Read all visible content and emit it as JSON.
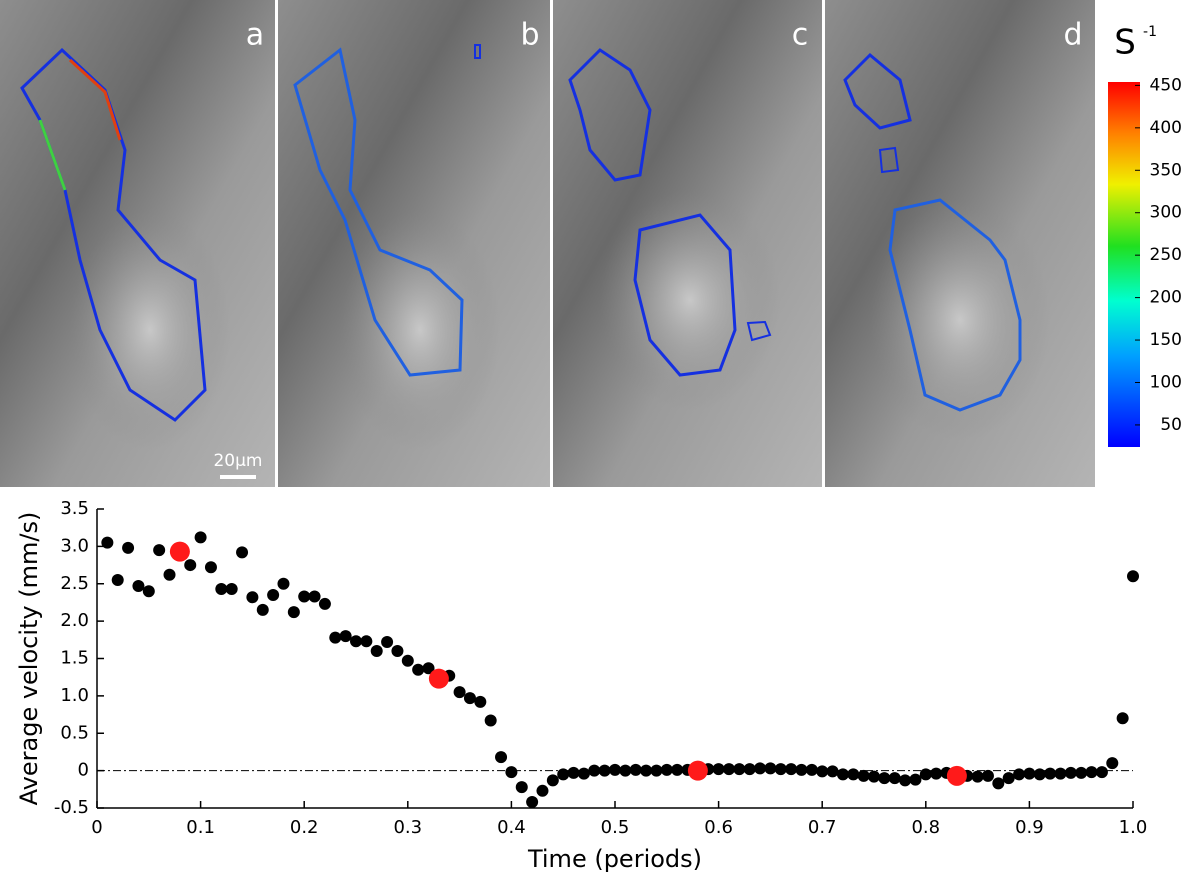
{
  "panels": {
    "labels": [
      "a",
      "b",
      "c",
      "d"
    ],
    "scale_bar": "20μm"
  },
  "chart_data": [
    {
      "type": "colorbar",
      "title": "S",
      "title_superscript": "-1",
      "colormap": "jet",
      "ylim": [
        24,
        454
      ],
      "yticks": [
        50,
        100,
        150,
        200,
        250,
        300,
        350,
        400,
        450
      ]
    },
    {
      "type": "scatter",
      "x_label": "Time (periods)",
      "y_label": "Average velocity (mm/s)",
      "xlim": [
        0,
        1
      ],
      "xticks": [
        0,
        0.1,
        0.2,
        0.3,
        0.4,
        0.5,
        0.6,
        0.7,
        0.8,
        0.9,
        {
          "value": 1,
          "label": "1.0"
        }
      ],
      "ylim": [
        -0.5,
        3.5
      ],
      "yticks": [
        -0.5,
        0,
        0.5,
        {
          "value": 1,
          "label": "1.0"
        },
        1.5,
        {
          "value": 2,
          "label": "2.0"
        },
        2.5,
        {
          "value": 3,
          "label": "3.0"
        },
        3.5
      ],
      "zero_line": true,
      "grid": false,
      "series": [
        {
          "color": "#000000",
          "x": [
            0.01,
            0.02,
            0.03,
            0.04,
            0.05,
            0.06,
            0.07,
            0.09,
            0.1,
            0.11,
            0.12,
            0.13,
            0.14,
            0.15,
            0.16,
            0.17,
            0.18,
            0.19,
            0.2,
            0.21,
            0.22,
            0.23,
            0.24,
            0.25,
            0.26,
            0.27,
            0.28,
            0.29,
            0.3,
            0.31,
            0.32,
            0.34,
            0.35,
            0.36,
            0.37,
            0.38,
            0.39,
            0.4,
            0.41,
            0.42,
            0.43,
            0.44,
            0.45,
            0.46,
            0.47,
            0.48,
            0.49,
            0.5,
            0.51,
            0.52,
            0.53,
            0.54,
            0.55,
            0.56,
            0.57,
            0.59,
            0.6,
            0.61,
            0.62,
            0.63,
            0.64,
            0.65,
            0.66,
            0.67,
            0.68,
            0.69,
            0.7,
            0.71,
            0.72,
            0.73,
            0.74,
            0.75,
            0.76,
            0.77,
            0.78,
            0.79,
            0.8,
            0.81,
            0.82,
            0.84,
            0.85,
            0.86,
            0.87,
            0.88,
            0.89,
            0.9,
            0.91,
            0.92,
            0.93,
            0.94,
            0.95,
            0.96,
            0.97,
            0.98,
            0.99,
            1.0
          ],
          "values": [
            3.05,
            2.55,
            2.98,
            2.47,
            2.4,
            2.95,
            2.62,
            2.75,
            3.12,
            2.72,
            2.43,
            2.43,
            2.92,
            2.32,
            2.15,
            2.35,
            2.5,
            2.12,
            2.33,
            2.33,
            2.23,
            1.78,
            1.8,
            1.73,
            1.73,
            1.6,
            1.72,
            1.6,
            1.47,
            1.35,
            1.37,
            1.27,
            1.05,
            0.97,
            0.92,
            0.67,
            0.18,
            -0.02,
            -0.22,
            -0.42,
            -0.27,
            -0.13,
            -0.05,
            -0.03,
            -0.04,
            0.0,
            0.0,
            0.01,
            0.0,
            0.01,
            0.0,
            0.0,
            0.01,
            0.01,
            0.01,
            0.02,
            0.02,
            0.02,
            0.02,
            0.02,
            0.03,
            0.03,
            0.02,
            0.02,
            0.01,
            0.01,
            -0.01,
            -0.01,
            -0.05,
            -0.05,
            -0.07,
            -0.08,
            -0.1,
            -0.1,
            -0.13,
            -0.12,
            -0.05,
            -0.04,
            -0.03,
            -0.07,
            -0.08,
            -0.07,
            -0.17,
            -0.1,
            -0.05,
            -0.04,
            -0.05,
            -0.04,
            -0.04,
            -0.03,
            -0.03,
            -0.02,
            -0.02,
            0.1,
            0.7,
            2.6
          ]
        },
        {
          "color": "#ff1a1a",
          "x": [
            0.08,
            0.33,
            0.58,
            0.83
          ],
          "values": [
            2.93,
            1.23,
            0.0,
            -0.07
          ]
        }
      ]
    }
  ]
}
